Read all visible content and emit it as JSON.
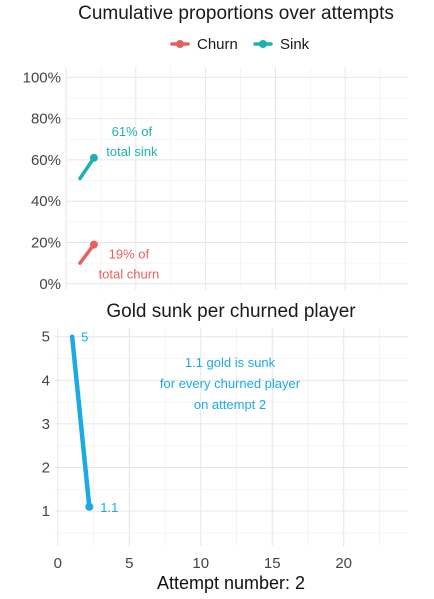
{
  "colors": {
    "churn": "#E8605E",
    "sink": "#1BB3B2",
    "gold": "#1AABE6"
  },
  "chart_data": [
    {
      "type": "line",
      "title": "Cumulative proportions over attempts",
      "xlabel": "",
      "ylabel": "",
      "xlim": [
        0,
        24.5
      ],
      "ylim": [
        -0.03,
        1.05
      ],
      "y_ticks": [
        0,
        0.2,
        0.4,
        0.6,
        0.8,
        1.0
      ],
      "y_tick_labels": [
        "0%",
        "20%",
        "40%",
        "60%",
        "80%",
        "100%"
      ],
      "grid": true,
      "legend_position": "top",
      "legend": [
        "Churn",
        "Sink"
      ],
      "series": [
        {
          "name": "Churn",
          "color_key": "churn",
          "x": [
            1,
            2
          ],
          "y": [
            0.1,
            0.19
          ]
        },
        {
          "name": "Sink",
          "color_key": "sink",
          "x": [
            1,
            2
          ],
          "y": [
            0.51,
            0.61
          ]
        }
      ],
      "annotations": [
        {
          "series": "Sink",
          "lines": [
            "61% of",
            "total sink"
          ]
        },
        {
          "series": "Churn",
          "lines": [
            "19% of",
            "total churn"
          ]
        }
      ]
    },
    {
      "type": "line",
      "title": "Gold sunk per churned player",
      "xlabel": "Attempt number: 2",
      "ylabel": "",
      "xlim": [
        -0.2,
        24.5
      ],
      "ylim": [
        0.2,
        5.2
      ],
      "x_ticks": [
        0,
        5,
        10,
        15,
        20
      ],
      "y_ticks": [
        1,
        2,
        3,
        4,
        5
      ],
      "grid": true,
      "series": [
        {
          "color_key": "gold",
          "x": [
            1,
            2.2
          ],
          "y": [
            5,
            1.1
          ]
        }
      ],
      "point_labels": [
        "5",
        "1.1"
      ],
      "annotation": [
        "1.1 gold is sunk",
        "for every churned player",
        "on attempt 2"
      ]
    }
  ]
}
